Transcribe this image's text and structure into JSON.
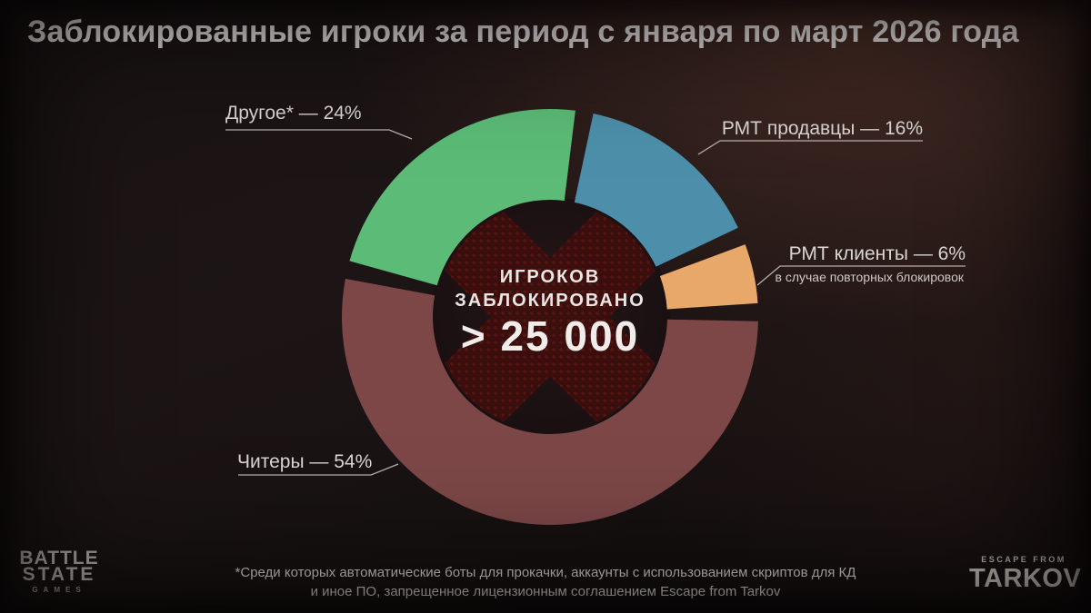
{
  "title": "Заблокированные игроки за период с января по март 2026 года",
  "center": {
    "line1": "ИГРОКОВ",
    "line2": "ЗАБЛОКИРОВАНО",
    "value": "> 25 000"
  },
  "chart_data": {
    "type": "pie",
    "variant": "donut",
    "title": "Заблокированные игроки за период с января по март 2026 года",
    "center_label": "ИГРОКОВ ЗАБЛОКИРОВАНО",
    "center_value": "> 25 000",
    "start_angle_deg": 9.5,
    "gap_deg": 5,
    "legend_position": "callout-labels",
    "segments": [
      {
        "label": "РМТ продавцы",
        "value_pct": 16,
        "color": "#4d8faa",
        "display": "РМТ продавцы — 16%"
      },
      {
        "label": "РМТ клиенты",
        "value_pct": 6,
        "color": "#e8a869",
        "display": "РМТ клиенты — 6%",
        "note": "в случае повторных блокировок"
      },
      {
        "label": "Читеры",
        "value_pct": 54,
        "color": "#7d4747",
        "display": "Читеры — 54%"
      },
      {
        "label": "Другое",
        "value_pct": 24,
        "color": "#5cbb77",
        "display": "Другое* — 24%"
      }
    ]
  },
  "footnote": {
    "line1": "*Среди которых автоматические боты для прокачки, аккаунты с использованием скриптов для КД",
    "line2": "и иное ПО, запрещенное лицензионным соглашением Escape from Tarkov"
  },
  "logos": {
    "bsg": {
      "line1": "BATTLE",
      "line2": "STATE",
      "line3": "GAMES"
    },
    "eft": {
      "top": "ESCAPE FROM",
      "bottom": "TARKOV"
    }
  }
}
